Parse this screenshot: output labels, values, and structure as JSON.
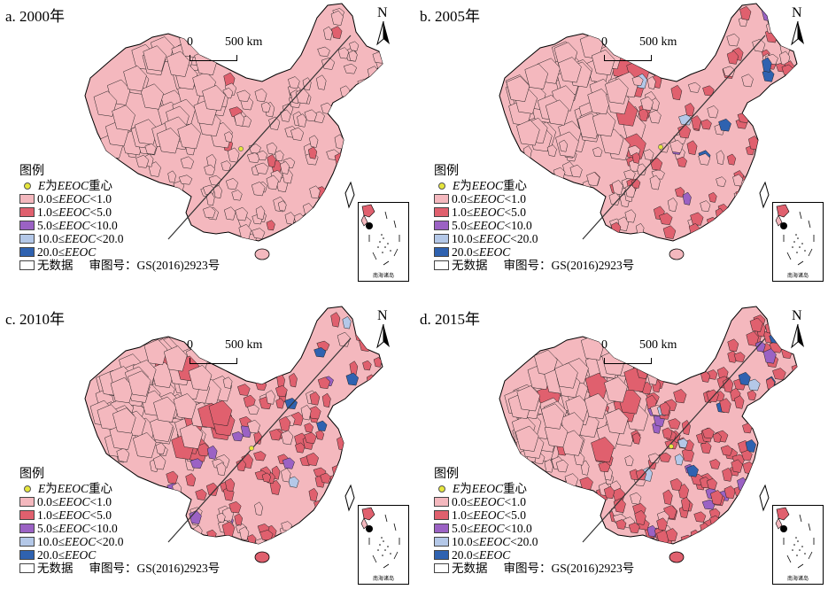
{
  "panels": [
    {
      "title": "a. 2000年",
      "level": 0
    },
    {
      "title": "b. 2005年",
      "level": 1
    },
    {
      "title": "c. 2010年",
      "level": 2
    },
    {
      "title": "d. 2015年",
      "level": 3
    }
  ],
  "scale": {
    "zero": "0",
    "dist": "500 km"
  },
  "north": "N",
  "legend": {
    "title": "图例",
    "centroid": {
      "var": "E",
      "text": "为",
      "var2": "EEOC",
      "text2": "重心"
    },
    "classes": [
      {
        "lo": "0.0",
        "op1": "≤",
        "var": "EEOC",
        "op2": "<",
        "hi": "1.0",
        "color": "#f4b8be"
      },
      {
        "lo": "1.0",
        "op1": "≤",
        "var": "EEOC",
        "op2": "<",
        "hi": "5.0",
        "color": "#e0606e"
      },
      {
        "lo": "5.0",
        "op1": "≤",
        "var": "EEOC",
        "op2": "<",
        "hi": "10.0",
        "color": "#9b62c4"
      },
      {
        "lo": "10.0",
        "op1": "≤",
        "var": "EEOC",
        "op2": "<",
        "hi": "20.0",
        "color": "#b4c8e8"
      },
      {
        "lo": "20.0",
        "op1": "≤",
        "var": "EEOC",
        "op2": "",
        "hi": "",
        "color": "#2f62b0"
      }
    ],
    "nodata": "无数据",
    "approval": "审图号：GS(2016)2923号"
  },
  "inset_caption": "南海诸岛"
}
